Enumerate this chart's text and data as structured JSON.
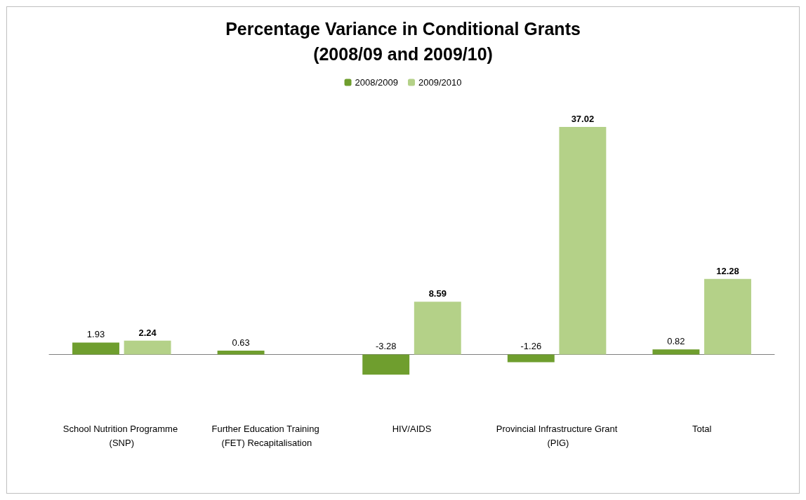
{
  "chart_data": {
    "type": "bar",
    "title": "Percentage Variance in Conditional Grants\n(2008/09 and 2009/10)",
    "categories": [
      "School Nutrition Programme (SNP)",
      "Further Education Training (FET) Recapitalisation",
      "HIV/AIDS",
      "Provincial Infrastructure Grant (PIG)",
      "Total"
    ],
    "series": [
      {
        "name": "2008/2009",
        "color": "#6f9e2e",
        "values": [
          1.93,
          0.63,
          -3.28,
          -1.26,
          0.82
        ]
      },
      {
        "name": "2009/2010",
        "color": "#b4d188",
        "values": [
          2.24,
          null,
          8.59,
          37.02,
          12.28
        ]
      }
    ],
    "data_labels": true,
    "legend": "top",
    "grid": false
  }
}
